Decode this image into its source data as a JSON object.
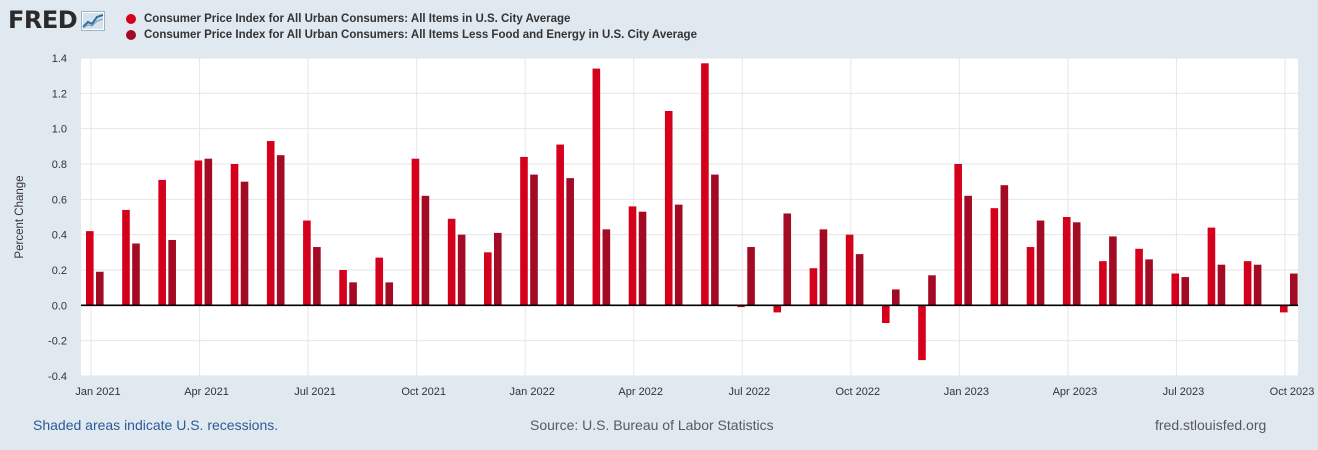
{
  "header": {
    "logo_text": "FRED"
  },
  "colors": {
    "series_1": "#d4001c",
    "series_2": "#a30a24",
    "plot_background": "#ffffff",
    "page_background": "#e1e9f0",
    "grid": "#e6e6e6",
    "zero_line": "#000000",
    "axis_text": "#333333"
  },
  "chart_data": {
    "type": "bar",
    "title": "",
    "xlabel": "",
    "ylabel": "Percent Change",
    "ylim": [
      -0.4,
      1.4
    ],
    "yticks": [
      -0.4,
      -0.2,
      0.0,
      0.2,
      0.4,
      0.6,
      0.8,
      1.0,
      1.2,
      1.4
    ],
    "ytick_labels": [
      "-0.4",
      "-0.2",
      "0.0",
      "0.2",
      "0.4",
      "0.6",
      "0.8",
      "1.0",
      "1.2",
      "1.4"
    ],
    "categories": [
      "Jan 2021",
      "Feb 2021",
      "Mar 2021",
      "Apr 2021",
      "May 2021",
      "Jun 2021",
      "Jul 2021",
      "Aug 2021",
      "Sep 2021",
      "Oct 2021",
      "Nov 2021",
      "Dec 2021",
      "Jan 2022",
      "Feb 2022",
      "Mar 2022",
      "Apr 2022",
      "May 2022",
      "Jun 2022",
      "Jul 2022",
      "Aug 2022",
      "Sep 2022",
      "Oct 2022",
      "Nov 2022",
      "Dec 2022",
      "Jan 2023",
      "Feb 2023",
      "Mar 2023",
      "Apr 2023",
      "May 2023",
      "Jun 2023",
      "Jul 2023",
      "Aug 2023",
      "Sep 2023",
      "Oct 2023"
    ],
    "xtick_labels": [
      {
        "index": 0,
        "label": "Jan 2021"
      },
      {
        "index": 3,
        "label": "Apr 2021"
      },
      {
        "index": 6,
        "label": "Jul 2021"
      },
      {
        "index": 9,
        "label": "Oct 2021"
      },
      {
        "index": 12,
        "label": "Jan 2022"
      },
      {
        "index": 15,
        "label": "Apr 2022"
      },
      {
        "index": 18,
        "label": "Jul 2022"
      },
      {
        "index": 21,
        "label": "Oct 2022"
      },
      {
        "index": 24,
        "label": "Jan 2023"
      },
      {
        "index": 27,
        "label": "Apr 2023"
      },
      {
        "index": 30,
        "label": "Jul 2023"
      },
      {
        "index": 33,
        "label": "Oct 2023"
      }
    ],
    "series": [
      {
        "name": "Consumer Price Index for All Urban Consumers: All Items in U.S. City Average",
        "values": [
          0.42,
          0.54,
          0.71,
          0.82,
          0.8,
          0.93,
          0.48,
          0.2,
          0.27,
          0.83,
          0.49,
          0.3,
          0.84,
          0.91,
          1.34,
          0.56,
          1.1,
          1.37,
          -0.01,
          -0.04,
          0.21,
          0.4,
          -0.1,
          -0.31,
          0.8,
          0.55,
          0.33,
          0.5,
          0.25,
          0.32,
          0.18,
          0.44,
          0.25,
          -0.04
        ]
      },
      {
        "name": "Consumer Price Index for All Urban Consumers: All Items Less Food and Energy in U.S. City Average",
        "values": [
          0.19,
          0.35,
          0.37,
          0.83,
          0.7,
          0.85,
          0.33,
          0.13,
          0.13,
          0.62,
          0.4,
          0.41,
          0.74,
          0.72,
          0.43,
          0.53,
          0.57,
          0.74,
          0.33,
          0.52,
          0.43,
          0.29,
          0.09,
          0.17,
          0.62,
          0.68,
          0.48,
          0.47,
          0.39,
          0.26,
          0.16,
          0.23,
          0.23,
          0.18
        ]
      }
    ],
    "grid": true,
    "legend_position": "top-left"
  },
  "footer": {
    "recession_note": "Shaded areas indicate U.S. recessions.",
    "source": "Source: U.S. Bureau of Labor Statistics",
    "site": "fred.stlouisfed.org"
  }
}
